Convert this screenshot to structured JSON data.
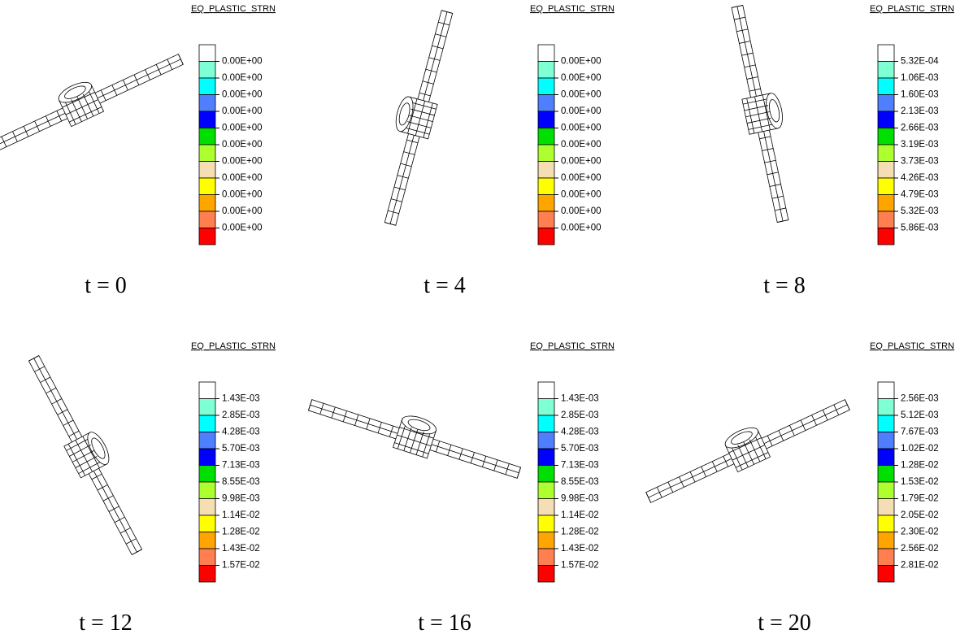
{
  "legend_colors": [
    "#ffffff",
    "#7fffd4",
    "#00ffff",
    "#4f7fff",
    "#0000ff",
    "#00e000",
    "#adff2f",
    "#f5deb3",
    "#ffff00",
    "#ffa500",
    "#ff7f50",
    "#ff0000"
  ],
  "panels": [
    {
      "legend_title": "EQ_PLASTIC_STRN",
      "legend_labels": [
        "0.00E+00",
        "0.00E+00",
        "0.00E+00",
        "0.00E+00",
        "0.00E+00",
        "0.00E+00",
        "0.00E+00",
        "0.00E+00",
        "0.00E+00",
        "0.00E+00",
        "0.00E+00"
      ],
      "caption": "t = 0"
    },
    {
      "legend_title": "EQ_PLASTIC_STRN",
      "legend_labels": [
        "0.00E+00",
        "0.00E+00",
        "0.00E+00",
        "0.00E+00",
        "0.00E+00",
        "0.00E+00",
        "0.00E+00",
        "0.00E+00",
        "0.00E+00",
        "0.00E+00",
        "0.00E+00"
      ],
      "caption": "t = 4"
    },
    {
      "legend_title": "EQ_PLASTIC_STRN",
      "legend_labels": [
        "5.32E-04",
        "1.06E-03",
        "1.60E-03",
        "2.13E-03",
        "2.66E-03",
        "3.19E-03",
        "3.73E-03",
        "4.26E-03",
        "4.79E-03",
        "5.32E-03",
        "5.86E-03"
      ],
      "caption": "t = 8"
    },
    {
      "legend_title": "EQ_PLASTIC_STRN",
      "legend_labels": [
        "1.43E-03",
        "2.85E-03",
        "4.28E-03",
        "5.70E-03",
        "7.13E-03",
        "8.55E-03",
        "9.98E-03",
        "1.14E-02",
        "1.28E-02",
        "1.43E-02",
        "1.57E-02"
      ],
      "caption": "t = 12"
    },
    {
      "legend_title": "EQ_PLASTIC_STRN",
      "legend_labels": [
        "1.43E-03",
        "2.85E-03",
        "4.28E-03",
        "5.70E-03",
        "7.13E-03",
        "8.55E-03",
        "9.98E-03",
        "1.14E-02",
        "1.28E-02",
        "1.43E-02",
        "1.57E-02"
      ],
      "caption": "t = 16"
    },
    {
      "legend_title": "EQ_PLASTIC_STRN",
      "legend_labels": [
        "2.56E-03",
        "5.12E-03",
        "7.67E-03",
        "1.02E-02",
        "1.28E-02",
        "1.53E-02",
        "1.79E-02",
        "2.05E-02",
        "2.30E-02",
        "2.56E-02",
        "2.81E-02"
      ],
      "caption": "t = 20"
    }
  ]
}
